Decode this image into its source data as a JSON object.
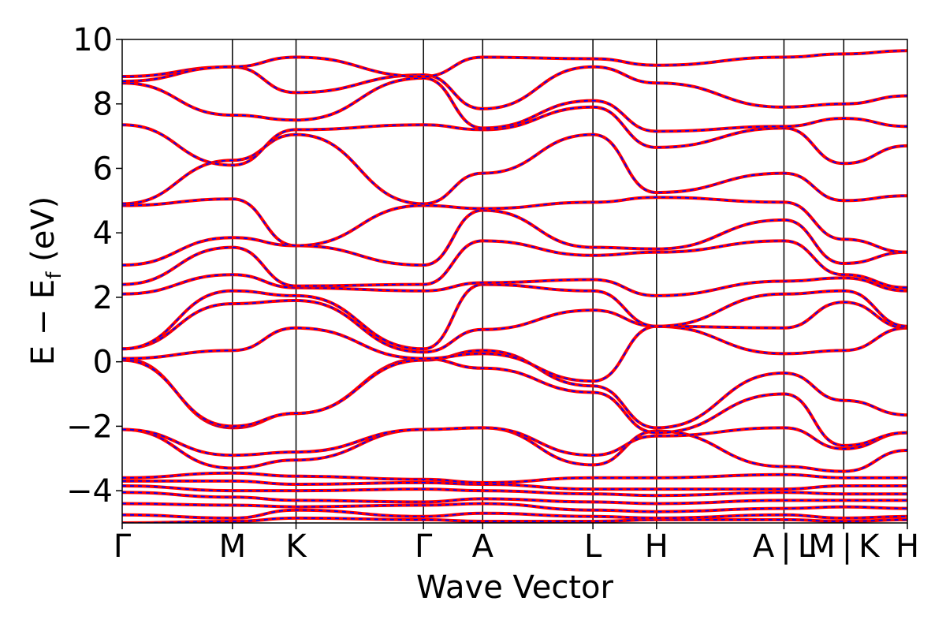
{
  "chart_data": {
    "type": "line",
    "title": "",
    "xlabel": "Wave Vector",
    "ylabel": "E − E",
    "ylabel_sub": "f",
    "ylabel_unit": " (eV)",
    "ylim": [
      -5,
      10
    ],
    "yticks": [
      10,
      8,
      6,
      4,
      2,
      0,
      -2,
      -4
    ],
    "ytick_labels": [
      "10",
      "8",
      "6",
      "4",
      "2",
      "0",
      "−2",
      "−4"
    ],
    "kpath_labels": [
      "Γ",
      "M",
      "K",
      "Γ",
      "A",
      "L",
      "H",
      "A | L",
      "M | K",
      "H"
    ],
    "kpath_positions": [
      0,
      0.577,
      0.91,
      1.577,
      1.887,
      2.464,
      2.797,
      3.464,
      3.777,
      4.11
    ],
    "xlim": [
      0,
      4.11
    ],
    "grid": false,
    "legend": "none",
    "line_colors": {
      "primary": "#ff0000",
      "overlay": "#0000ff"
    },
    "series": [
      {
        "values": [
          -5.0,
          -4.95,
          -4.85,
          -4.9,
          -4.95,
          -4.95,
          -4.9,
          -4.9,
          -4.95,
          -4.9
        ]
      },
      {
        "values": [
          -4.75,
          -4.85,
          -4.6,
          -4.8,
          -4.7,
          -4.8,
          -4.85,
          -4.75,
          -4.85,
          -4.8
        ]
      },
      {
        "values": [
          -4.4,
          -4.45,
          -4.5,
          -4.45,
          -4.4,
          -4.6,
          -4.65,
          -4.55,
          -4.5,
          -4.55
        ]
      },
      {
        "values": [
          -4.05,
          -4.2,
          -4.3,
          -4.35,
          -4.25,
          -4.35,
          -4.4,
          -4.3,
          -4.3,
          -4.3
        ]
      },
      {
        "values": [
          -3.85,
          -4.0,
          -4.0,
          -3.95,
          -4.0,
          -4.1,
          -4.15,
          -4.05,
          -4.1,
          -4.1
        ]
      },
      {
        "values": [
          -3.7,
          -3.7,
          -3.8,
          -3.75,
          -3.8,
          -3.95,
          -3.95,
          -3.95,
          -3.85,
          -3.85
        ]
      },
      {
        "values": [
          -3.6,
          -3.45,
          -3.55,
          -3.65,
          -3.75,
          -3.6,
          -3.6,
          -3.5,
          -3.6,
          -3.6
        ]
      },
      {
        "values": [
          -2.1,
          -3.3,
          -3.05,
          -2.1,
          -2.05,
          -3.2,
          -2.15,
          -3.25,
          -3.4,
          -2.75
        ]
      },
      {
        "values": [
          -2.1,
          -2.9,
          -2.8,
          -2.1,
          -2.05,
          -2.9,
          -2.3,
          -2.05,
          -2.7,
          -2.2
        ]
      },
      {
        "values": [
          0.1,
          -2.05,
          -1.6,
          0.1,
          -0.2,
          -0.95,
          -2.2,
          -1.0,
          -2.6,
          -2.2
        ]
      },
      {
        "values": [
          0.05,
          -2.0,
          -1.6,
          0.05,
          0.35,
          -0.75,
          -2.05,
          -0.35,
          -1.2,
          -1.65
        ]
      },
      {
        "values": [
          0.1,
          0.35,
          1.05,
          0.1,
          0.25,
          -0.6,
          1.1,
          0.25,
          0.35,
          1.05
        ]
      },
      {
        "values": [
          0.4,
          1.8,
          1.9,
          0.3,
          1.0,
          1.6,
          1.1,
          1.05,
          1.85,
          1.05
        ]
      },
      {
        "values": [
          0.4,
          2.2,
          2.05,
          0.4,
          2.4,
          2.2,
          1.1,
          2.1,
          2.2,
          1.1
        ]
      },
      {
        "values": [
          2.1,
          2.7,
          2.3,
          2.2,
          2.45,
          2.55,
          2.05,
          2.5,
          2.6,
          2.2
        ]
      },
      {
        "values": [
          2.4,
          3.55,
          2.35,
          2.4,
          3.75,
          3.3,
          3.4,
          3.75,
          2.7,
          2.3
        ]
      },
      {
        "values": [
          3.0,
          3.85,
          3.6,
          3.0,
          4.7,
          3.55,
          3.5,
          4.4,
          3.05,
          3.4
        ]
      },
      {
        "values": [
          4.85,
          5.05,
          3.6,
          4.85,
          4.75,
          4.95,
          5.1,
          4.95,
          3.8,
          3.4
        ]
      },
      {
        "values": [
          4.9,
          6.25,
          7.05,
          4.9,
          5.85,
          7.05,
          5.25,
          5.85,
          5.0,
          5.15
        ]
      },
      {
        "values": [
          7.35,
          6.1,
          7.2,
          7.35,
          7.2,
          7.9,
          6.65,
          7.25,
          6.15,
          6.7
        ]
      },
      {
        "values": [
          8.65,
          7.65,
          7.5,
          8.8,
          7.25,
          8.1,
          7.15,
          7.3,
          7.55,
          7.3
        ]
      },
      {
        "values": [
          8.85,
          9.15,
          8.35,
          8.9,
          7.85,
          9.15,
          8.65,
          7.9,
          8.0,
          8.25
        ]
      },
      {
        "values": [
          8.7,
          9.15,
          9.45,
          8.85,
          9.45,
          9.4,
          9.2,
          9.45,
          9.55,
          9.65
        ]
      }
    ]
  }
}
